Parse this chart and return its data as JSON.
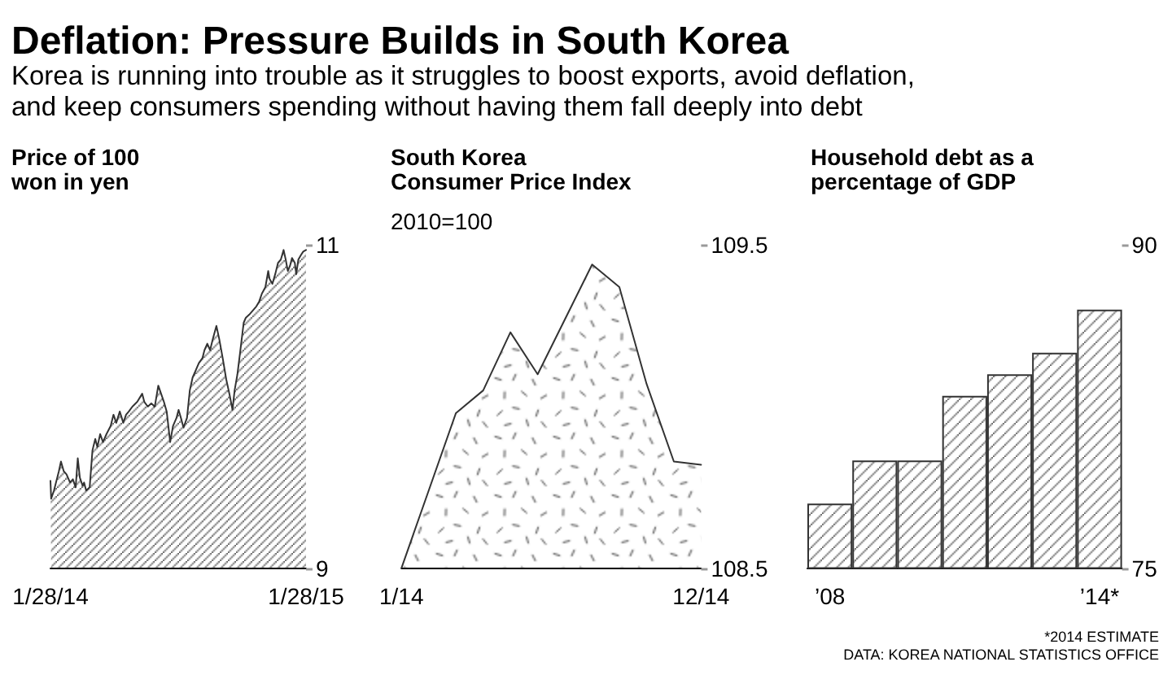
{
  "chart_data": [
    {
      "type": "other",
      "title": "Deflation: Pressure Builds in South Korea",
      "subtitle": "Korea is running into trouble as it struggles to boost exports, avoid deflation, and keep consumers spending without having them fall deeply into debt"
    },
    {
      "type": "area",
      "title": "Price of 100 won in yen",
      "x": [
        "2014-01-28",
        "2014-01-29",
        "2014-02-02",
        "2014-02-09",
        "2014-02-12",
        "2014-02-16",
        "2014-02-20",
        "2014-02-25",
        "2014-03-01",
        "2014-03-05",
        "2014-03-08",
        "2014-03-11",
        "2014-03-15",
        "2014-03-17",
        "2014-03-20",
        "2014-03-25",
        "2014-03-29",
        "2014-04-02",
        "2014-04-05",
        "2014-04-09",
        "2014-04-13",
        "2014-04-18",
        "2014-04-24",
        "2014-04-28",
        "2014-05-02",
        "2014-05-07",
        "2014-05-12",
        "2014-05-16",
        "2014-05-20",
        "2014-05-25",
        "2014-06-01",
        "2014-06-08",
        "2014-06-11",
        "2014-06-16",
        "2014-06-21",
        "2014-06-26",
        "2014-07-01",
        "2014-07-05",
        "2014-07-09",
        "2014-07-13",
        "2014-07-18",
        "2014-07-22",
        "2014-07-27",
        "2014-07-30",
        "2014-08-03",
        "2014-08-06",
        "2014-08-11",
        "2014-08-15",
        "2014-08-19",
        "2014-08-24",
        "2014-08-28",
        "2014-09-02",
        "2014-09-05",
        "2014-09-09",
        "2014-09-13",
        "2014-09-17",
        "2014-09-22",
        "2014-09-26",
        "2014-10-01",
        "2014-10-06",
        "2014-10-11",
        "2014-10-15",
        "2014-10-18",
        "2014-10-22",
        "2014-10-26",
        "2014-10-31",
        "2014-11-03",
        "2014-11-08",
        "2014-11-12",
        "2014-11-18",
        "2014-11-22",
        "2014-11-26",
        "2014-12-01",
        "2014-12-05",
        "2014-12-07",
        "2014-12-11",
        "2014-12-15",
        "2014-12-19",
        "2014-12-23",
        "2014-12-27",
        "2014-12-30",
        "2015-01-02",
        "2015-01-05",
        "2015-01-08",
        "2015-01-12",
        "2015-01-14",
        "2015-01-17",
        "2015-01-21",
        "2015-01-24",
        "2015-01-28"
      ],
      "values": [
        9.54,
        9.43,
        9.48,
        9.6,
        9.66,
        9.6,
        9.58,
        9.53,
        9.55,
        9.5,
        9.68,
        9.56,
        9.51,
        9.53,
        9.48,
        9.5,
        9.73,
        9.8,
        9.75,
        9.83,
        9.78,
        9.83,
        9.88,
        9.95,
        9.9,
        9.97,
        9.9,
        9.95,
        9.97,
        10.0,
        10.03,
        10.08,
        10.03,
        10.0,
        10.02,
        10.0,
        10.13,
        10.08,
        10.03,
        9.97,
        9.78,
        9.88,
        9.93,
        9.98,
        9.92,
        9.87,
        9.93,
        10.1,
        10.18,
        10.23,
        10.27,
        10.3,
        10.35,
        10.39,
        10.35,
        10.42,
        10.5,
        10.42,
        10.3,
        10.17,
        10.07,
        9.98,
        10.1,
        10.2,
        10.34,
        10.52,
        10.55,
        10.57,
        10.59,
        10.62,
        10.65,
        10.7,
        10.74,
        10.84,
        10.79,
        10.76,
        10.82,
        10.89,
        10.91,
        10.97,
        10.91,
        10.84,
        10.87,
        10.92,
        10.89,
        10.82,
        10.91,
        10.94,
        10.96,
        10.97
      ],
      "color": "#333333",
      "xlim": [
        "2014-01-28",
        "2015-01-28"
      ],
      "xticks": [
        {
          "value": "2014-01-28",
          "label": "1/28/14"
        },
        {
          "value": "2015-01-28",
          "label": "1/28/15"
        }
      ],
      "ylim": [
        9,
        11
      ],
      "yticks": [
        9,
        11
      ]
    },
    {
      "type": "area",
      "title": "South Korea Consumer Price Index",
      "subtitle": "2010=100",
      "categories": [
        "1/14",
        null,
        null,
        null,
        null,
        null,
        null,
        null,
        null,
        null,
        null,
        "12/14"
      ],
      "values": [
        108.5,
        108.74,
        108.98,
        109.05,
        109.23,
        109.1,
        109.27,
        109.44,
        109.37,
        109.07,
        108.83,
        108.82
      ],
      "color": "#333333",
      "ylim": [
        108.5,
        109.5
      ],
      "yticks": [
        108.5,
        109.5
      ]
    },
    {
      "type": "bar",
      "title": "Household debt as a percentage of GDP",
      "categories": [
        "’08",
        null,
        null,
        null,
        null,
        null,
        "’14*"
      ],
      "values": [
        78,
        80,
        80,
        83,
        84,
        85,
        87
      ],
      "color": "#333333",
      "ylim": [
        75,
        90
      ],
      "yticks": [
        75,
        90
      ],
      "annotations": [
        "*2014 ESTIMATE",
        "DATA: KOREA NATIONAL STATISTICS OFFICE"
      ]
    }
  ]
}
